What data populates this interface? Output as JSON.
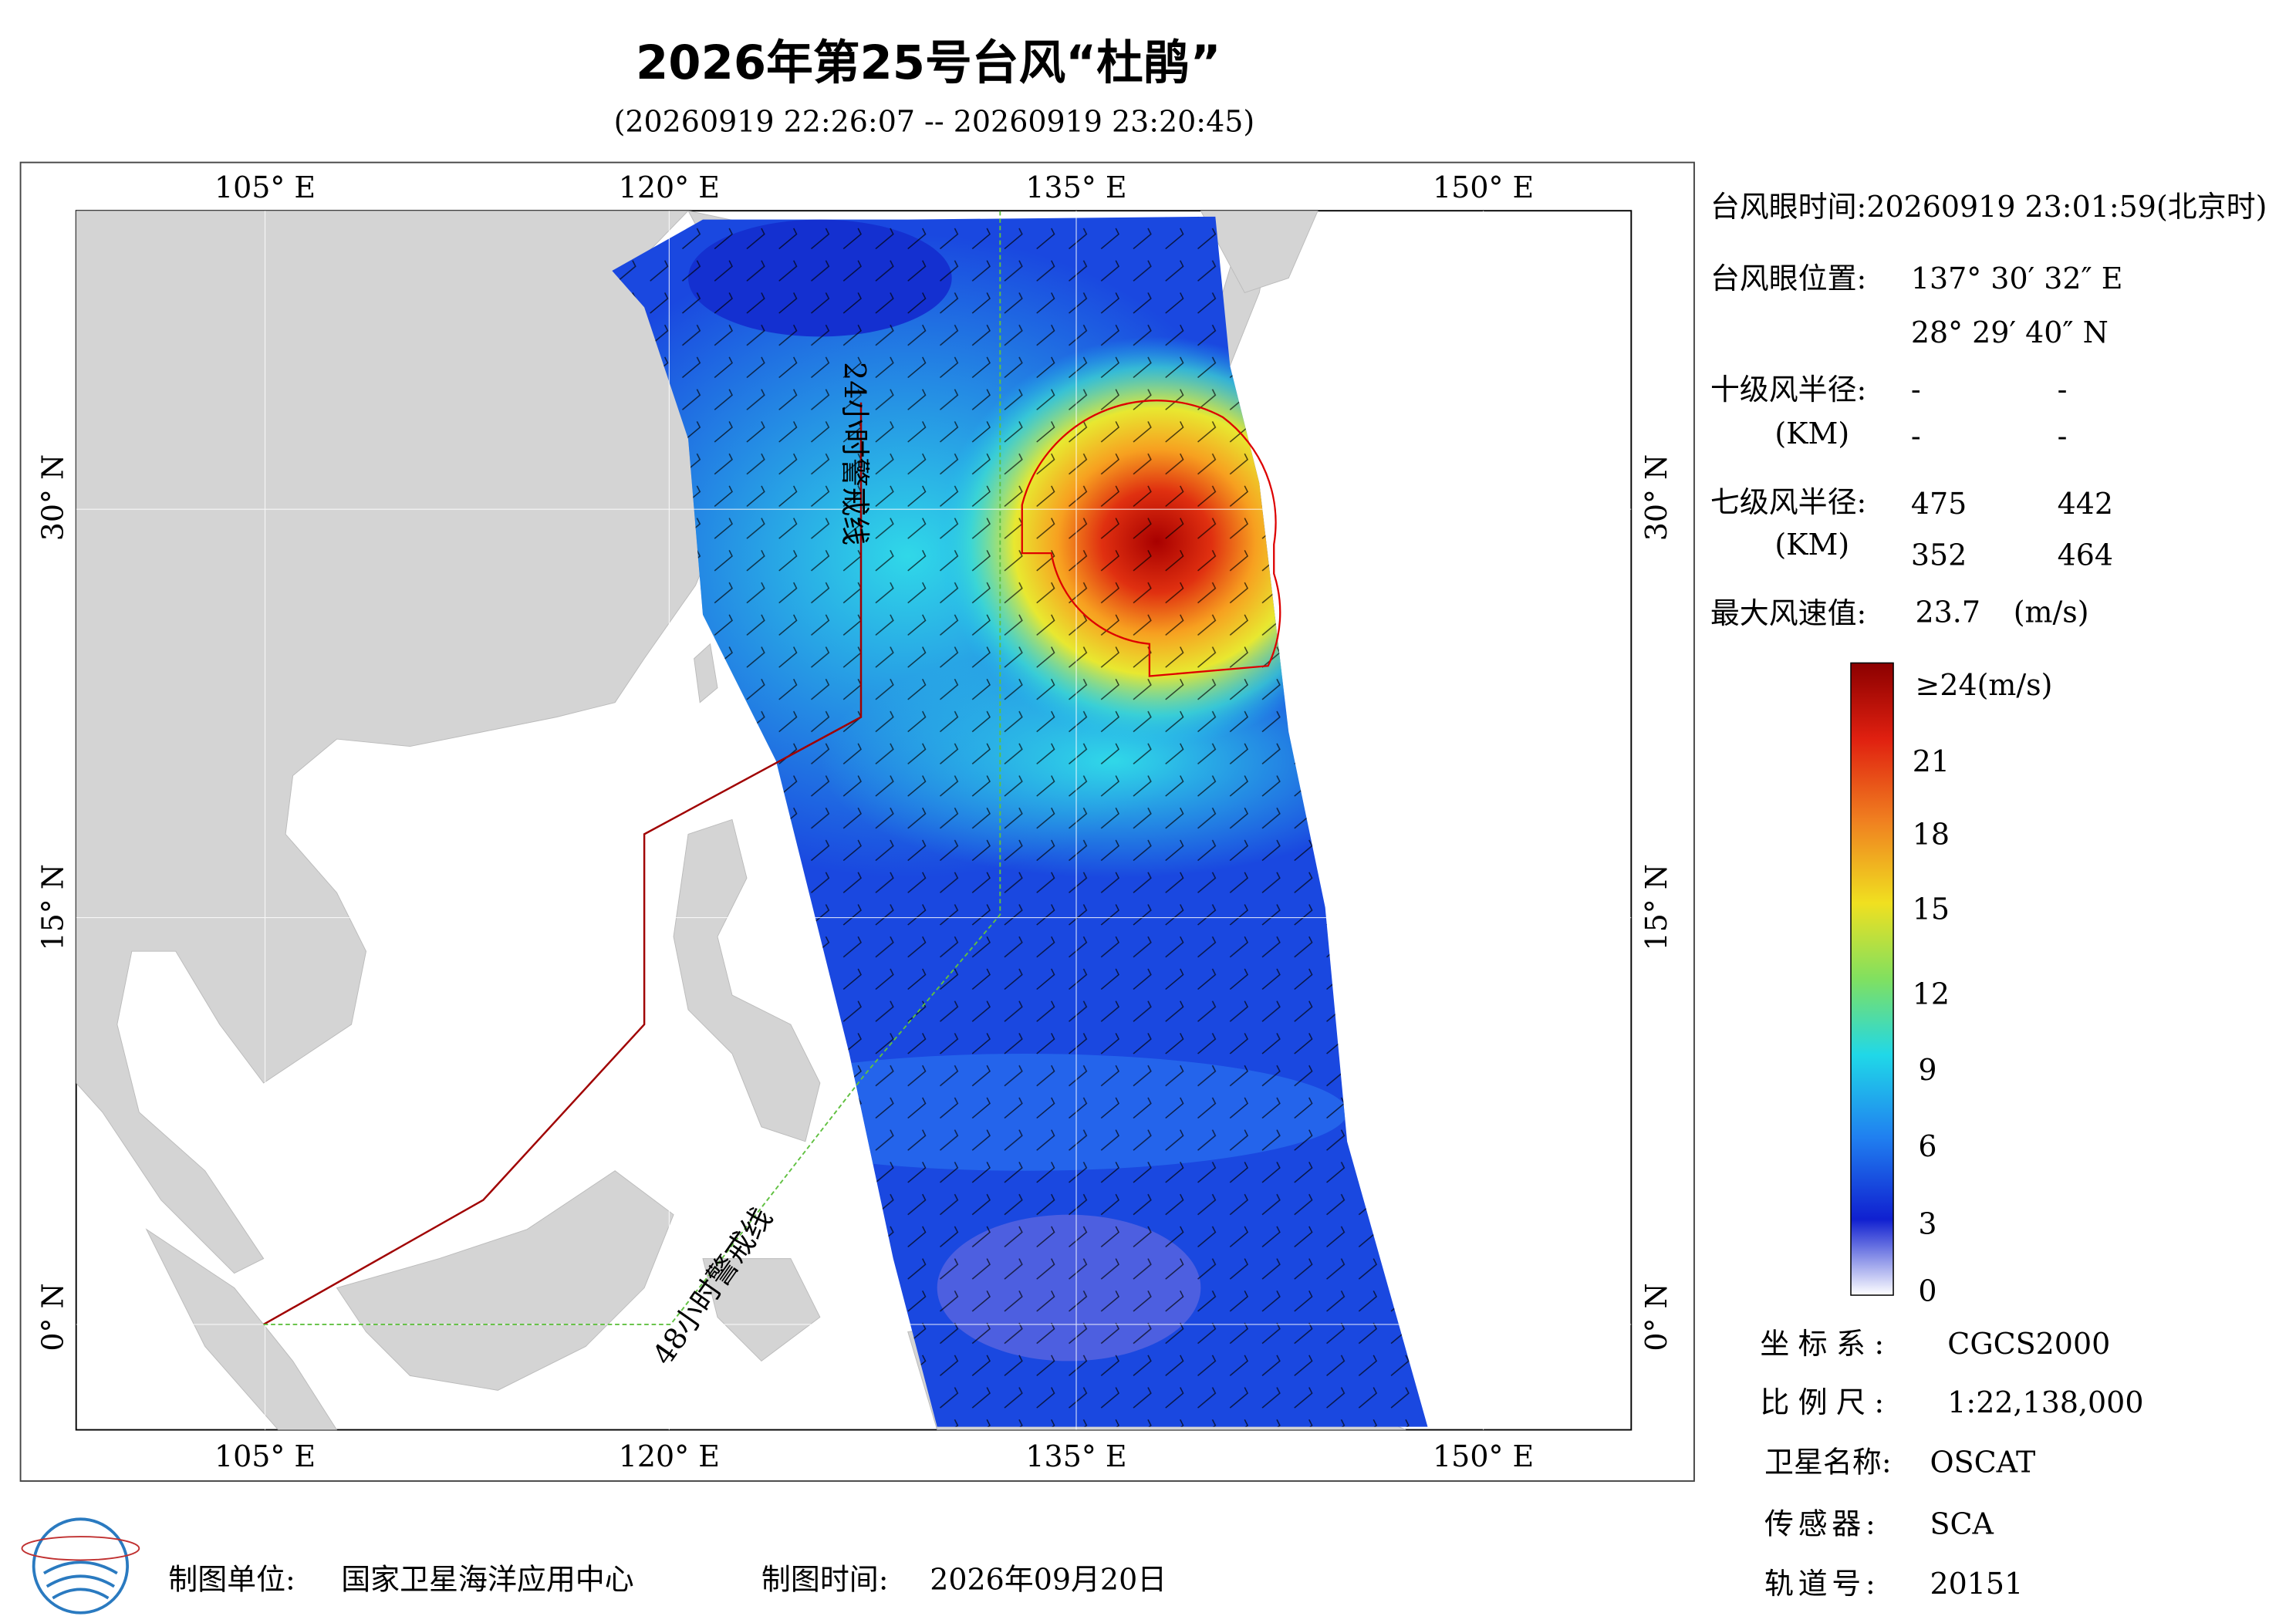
{
  "header": {
    "title": "2026年第25号台风“杜鹃”",
    "subtitle": "(20260919 22:26:07 -- 20260919 23:20:45)"
  },
  "map": {
    "top_labels": [
      "105° E",
      "120° E",
      "135° E",
      "150° E"
    ],
    "bottom_labels": [
      "105° E",
      "120° E",
      "135° E",
      "150° E"
    ],
    "left_labels": [
      "30° N",
      "15° N",
      "0° N"
    ],
    "right_labels": [
      "30° N",
      "15° N",
      "0° N"
    ],
    "annotations": [
      "24小时警戒线",
      "48小时警戒线"
    ]
  },
  "info": {
    "eye_time": "台风眼时间:20260919 23:01:59(北京时)",
    "eye_position_label": "台风眼位置:",
    "eye_lon": "137° 30′ 32″ E",
    "eye_lat": "28° 29′ 40″ N",
    "r10_label": "十级风半径:",
    "r10_unit": "(KM)",
    "r10_values": [
      "-",
      "-",
      "-",
      "-"
    ],
    "r7_label": "七级风半径:",
    "r7_unit": "(KM)",
    "r7_values": [
      475,
      442,
      352,
      464
    ],
    "max_wind_label": "最大风速值:",
    "max_wind": 23.7,
    "max_wind_unit": "(m/s)"
  },
  "colorbar": {
    "labels": [
      "≥24(m/s)",
      21,
      18,
      15,
      12,
      9,
      6,
      3,
      0
    ]
  },
  "footer": {
    "coord_label": "坐标系:",
    "coord": "CGCS2000",
    "scale_label": "比例尺:",
    "scale": "1:22,138,000",
    "satellite_label": "卫星名称:",
    "satellite": "OSCAT",
    "sensor_label": "传感器:",
    "sensor": "SCA",
    "orbit_label": "轨道号:",
    "orbit": 20151,
    "maker_label": "制图单位:",
    "maker": "国家卫星海洋应用中心",
    "date_label": "制图时间:",
    "date": "2026年09月20日"
  }
}
